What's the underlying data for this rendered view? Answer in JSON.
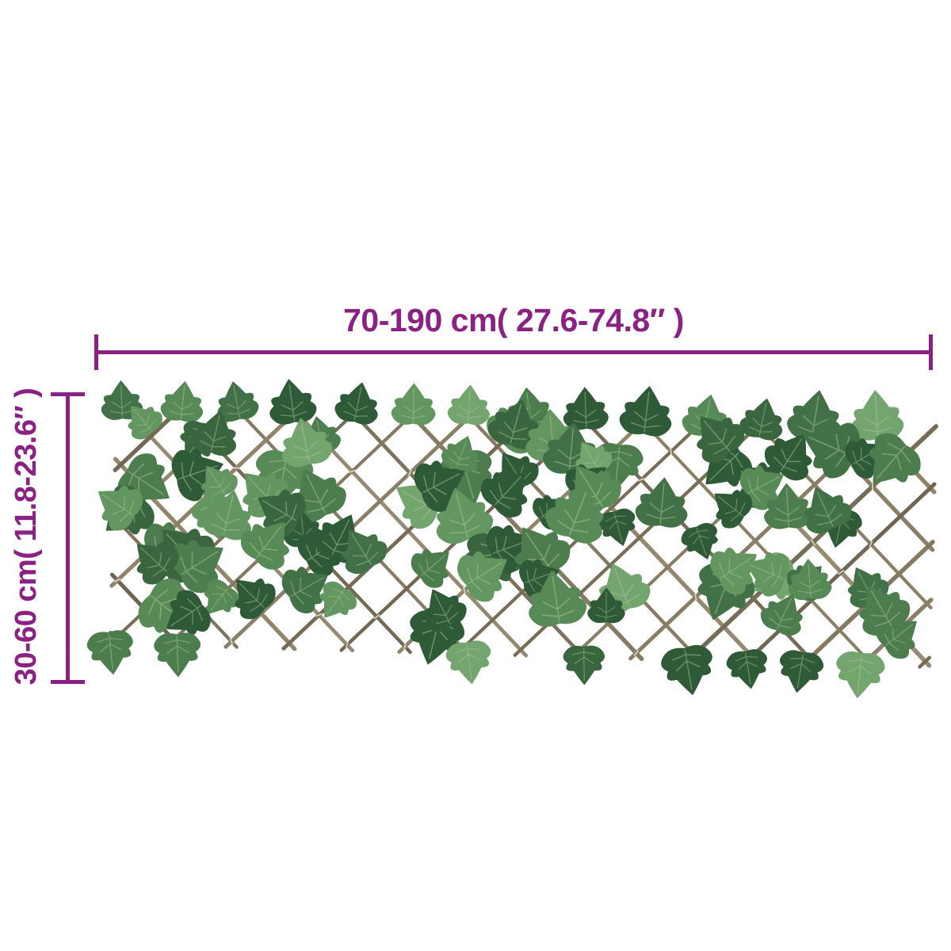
{
  "figure": {
    "subject": "expandable trellis fence covered with artificial green ivy leaves",
    "background_color": "#ffffff"
  },
  "annotations": {
    "color": "#8b2183",
    "width_label": "70-190 cm( 27.6-74.8″ )",
    "height_label": "30-60 cm( 11.8-23.6″ )"
  },
  "trellis": {
    "stick_color_dark": "#6e6450",
    "stick_color_light": "#988d72",
    "tie_color": "#d2d6c3",
    "vein_color": "#aec795",
    "leaf_colors": [
      "#2e5a37",
      "#39663f",
      "#427147",
      "#4d7d4f",
      "#588a57",
      "#639660",
      "#74a56e"
    ]
  }
}
